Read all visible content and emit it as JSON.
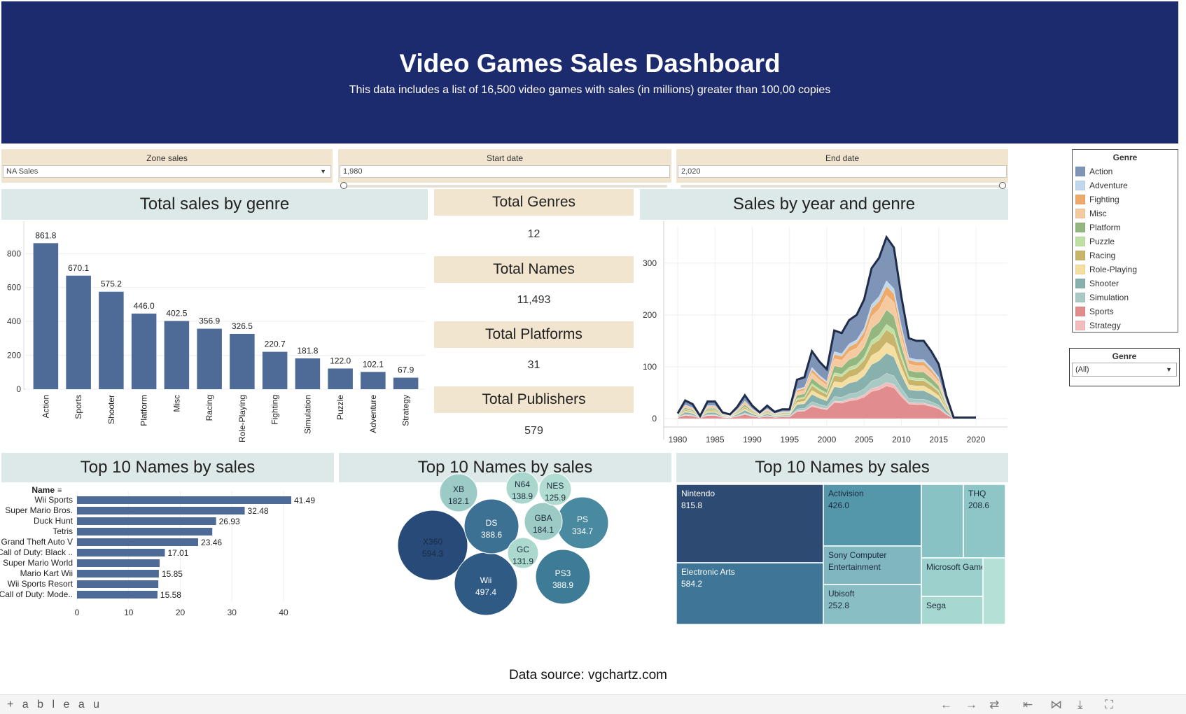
{
  "header": {
    "title": "Video Games Sales Dashboard",
    "subtitle": "This data includes a list  of 16,500 video games with sales (in millions) greater than 100,00 copies"
  },
  "filters": {
    "zone": {
      "label": "Zone sales",
      "value": "NA Sales"
    },
    "start": {
      "label": "Start date",
      "value": "1,980"
    },
    "end": {
      "label": "End date",
      "value": "2,020"
    }
  },
  "legend": {
    "title": "Genre",
    "items": [
      {
        "label": "Action",
        "color": "#7f95b8"
      },
      {
        "label": "Adventure",
        "color": "#c0d7ec"
      },
      {
        "label": "Fighting",
        "color": "#eeaa6a"
      },
      {
        "label": "Misc",
        "color": "#f6caa0"
      },
      {
        "label": "Platform",
        "color": "#94b77f"
      },
      {
        "label": "Puzzle",
        "color": "#bfe0a5"
      },
      {
        "label": "Racing",
        "color": "#c9b46b"
      },
      {
        "label": "Role-Playing",
        "color": "#f4dea0"
      },
      {
        "label": "Shooter",
        "color": "#88b0ad"
      },
      {
        "label": "Simulation",
        "color": "#a9c9c5"
      },
      {
        "label": "Sports",
        "color": "#e28d8d"
      },
      {
        "label": "Strategy",
        "color": "#f2bcbc"
      }
    ]
  },
  "genre_filter": {
    "title": "Genre",
    "value": "(All)"
  },
  "sections": {
    "genre_title": "Total sales by genre",
    "year_title": "Sales by year and genre",
    "names_title": "Top 10 Names by sales",
    "platform_title": "Top 10 Names by sales",
    "publisher_title": "Top 10 Names by sales"
  },
  "kpis": [
    {
      "label": "Total Genres",
      "value": "12"
    },
    {
      "label": "Total Names",
      "value": "11,493"
    },
    {
      "label": "Total Platforms",
      "value": "31"
    },
    {
      "label": "Total Publishers",
      "value": "579"
    }
  ],
  "source": "Data source: vgchartz.com",
  "footer": {
    "brand": "+ a b l e a u"
  },
  "chart_data": [
    {
      "type": "bar",
      "title": "Total sales by genre",
      "categories": [
        "Action",
        "Sports",
        "Shooter",
        "Platform",
        "Misc",
        "Racing",
        "Role-Playing",
        "Fighting",
        "Simulation",
        "Puzzle",
        "Adventure",
        "Strategy"
      ],
      "values": [
        861.8,
        670.1,
        575.2,
        446.0,
        402.5,
        356.9,
        326.5,
        220.7,
        181.8,
        122.0,
        102.1,
        67.9
      ],
      "labels": [
        "861.8",
        "670.1",
        "575.2",
        "446.0",
        "402.5",
        "356.9",
        "326.5",
        "220.7",
        "181.8",
        "122.0",
        "102.1",
        "67.9"
      ],
      "yticks": [
        0,
        200,
        400,
        600,
        800
      ],
      "ylim": [
        0,
        950
      ],
      "color": "#4e6a97"
    },
    {
      "type": "area",
      "title": "Sales by year and genre",
      "x": [
        1980,
        1981,
        1982,
        1983,
        1984,
        1985,
        1986,
        1987,
        1988,
        1989,
        1990,
        1991,
        1992,
        1993,
        1994,
        1995,
        1996,
        1997,
        1998,
        1999,
        2000,
        2001,
        2002,
        2003,
        2004,
        2005,
        2006,
        2007,
        2008,
        2009,
        2010,
        2011,
        2012,
        2013,
        2014,
        2015,
        2016,
        2017,
        2018,
        2019,
        2020
      ],
      "total": [
        10,
        35,
        28,
        5,
        33,
        33,
        12,
        8,
        23,
        45,
        25,
        12,
        25,
        13,
        18,
        18,
        75,
        80,
        130,
        110,
        95,
        170,
        165,
        190,
        200,
        230,
        290,
        310,
        350,
        330,
        235,
        155,
        150,
        150,
        130,
        105,
        45,
        2,
        2,
        2,
        2
      ],
      "xticks": [
        1980,
        1985,
        1990,
        1995,
        2000,
        2005,
        2010,
        2015,
        2020
      ],
      "yticks": [
        0,
        100,
        200,
        300
      ],
      "ylim": [
        0,
        370
      ],
      "series": [
        {
          "name": "Sports",
          "share": 0.18
        },
        {
          "name": "Strategy",
          "share": 0.02
        },
        {
          "name": "Simulation",
          "share": 0.05
        },
        {
          "name": "Shooter",
          "share": 0.11
        },
        {
          "name": "Role-Playing",
          "share": 0.06
        },
        {
          "name": "Racing",
          "share": 0.07
        },
        {
          "name": "Puzzle",
          "share": 0.03
        },
        {
          "name": "Platform",
          "share": 0.08
        },
        {
          "name": "Misc",
          "share": 0.08
        },
        {
          "name": "Fighting",
          "share": 0.05
        },
        {
          "name": "Adventure",
          "share": 0.03
        },
        {
          "name": "Action",
          "share": 0.24
        }
      ]
    },
    {
      "type": "bar",
      "title": "Top 10 Names by sales",
      "column_header": "Name",
      "categories": [
        "Wii Sports",
        "Super Mario Bros.",
        "Duck Hunt",
        "Tetris",
        "Grand Theft Auto V",
        "Call of Duty: Black ..",
        "Super Mario World",
        "Mario Kart Wii",
        "Wii Sports Resort",
        "Call of Duty: Mode.."
      ],
      "values": [
        41.49,
        32.48,
        26.93,
        26.2,
        23.46,
        17.01,
        16.0,
        15.85,
        15.75,
        15.58
      ],
      "labels": [
        "41.49",
        "32.48",
        "26.93",
        "",
        "23.46",
        "17.01",
        "",
        "15.85",
        "",
        "15.58"
      ],
      "xticks": [
        0,
        10,
        20,
        30,
        40
      ],
      "xlim": [
        0,
        48
      ],
      "color": "#4e6a97"
    },
    {
      "type": "bubble",
      "title": "Top 10 Names by sales",
      "bubbles": [
        {
          "label": "X360",
          "value": "594.3",
          "color": "#284a78"
        },
        {
          "label": "Wii",
          "value": "497.4",
          "color": "#2f5a84"
        },
        {
          "label": "DS",
          "value": "388.6",
          "color": "#3d7193"
        },
        {
          "label": "PS3",
          "value": "388.9",
          "color": "#3d7b96"
        },
        {
          "label": "PS",
          "value": "334.7",
          "color": "#4a8aa0"
        },
        {
          "label": "XB",
          "value": "182.1",
          "color": "#9ccbc6"
        },
        {
          "label": "GBA",
          "value": "184.1",
          "color": "#9ccbc6"
        },
        {
          "label": "N64",
          "value": "138.9",
          "color": "#a9d7cd"
        },
        {
          "label": "NES",
          "value": "125.9",
          "color": "#b0dcd1"
        },
        {
          "label": "GC",
          "value": "131.9",
          "color": "#abd9ce"
        }
      ]
    },
    {
      "type": "treemap",
      "title": "Top 10 Names by sales",
      "cells": [
        {
          "label": "Nintendo",
          "value": "815.8",
          "color": "#2d4a72",
          "text": "#ffffff"
        },
        {
          "label": "Electronic Arts",
          "value": "584.2",
          "color": "#3f7596",
          "text": "#ffffff"
        },
        {
          "label": "Activision",
          "value": "426.0",
          "color": "#5497ab",
          "text": "#1c2a3c"
        },
        {
          "label": "Sony Computer Entertainment",
          "value": "",
          "color": "#7fb6bf",
          "text": "#1c2a3c"
        },
        {
          "label": "Ubisoft",
          "value": "252.8",
          "color": "#88bec4",
          "text": "#1c2a3c"
        },
        {
          "label": "",
          "value": "",
          "color": "#88c2c4",
          "text": "#1c2a3c"
        },
        {
          "label": "THQ",
          "value": "208.6",
          "color": "#8ec6c7",
          "text": "#1c2a3c"
        },
        {
          "label": "Microsoft Game",
          "value": "",
          "color": "#9bd0cd",
          "text": "#1c2a3c"
        },
        {
          "label": "",
          "value": "",
          "color": "#b5e0d6",
          "text": "#1c2a3c"
        },
        {
          "label": "Sega",
          "value": "",
          "color": "#a6d8d0",
          "text": "#1c2a3c"
        }
      ]
    }
  ]
}
